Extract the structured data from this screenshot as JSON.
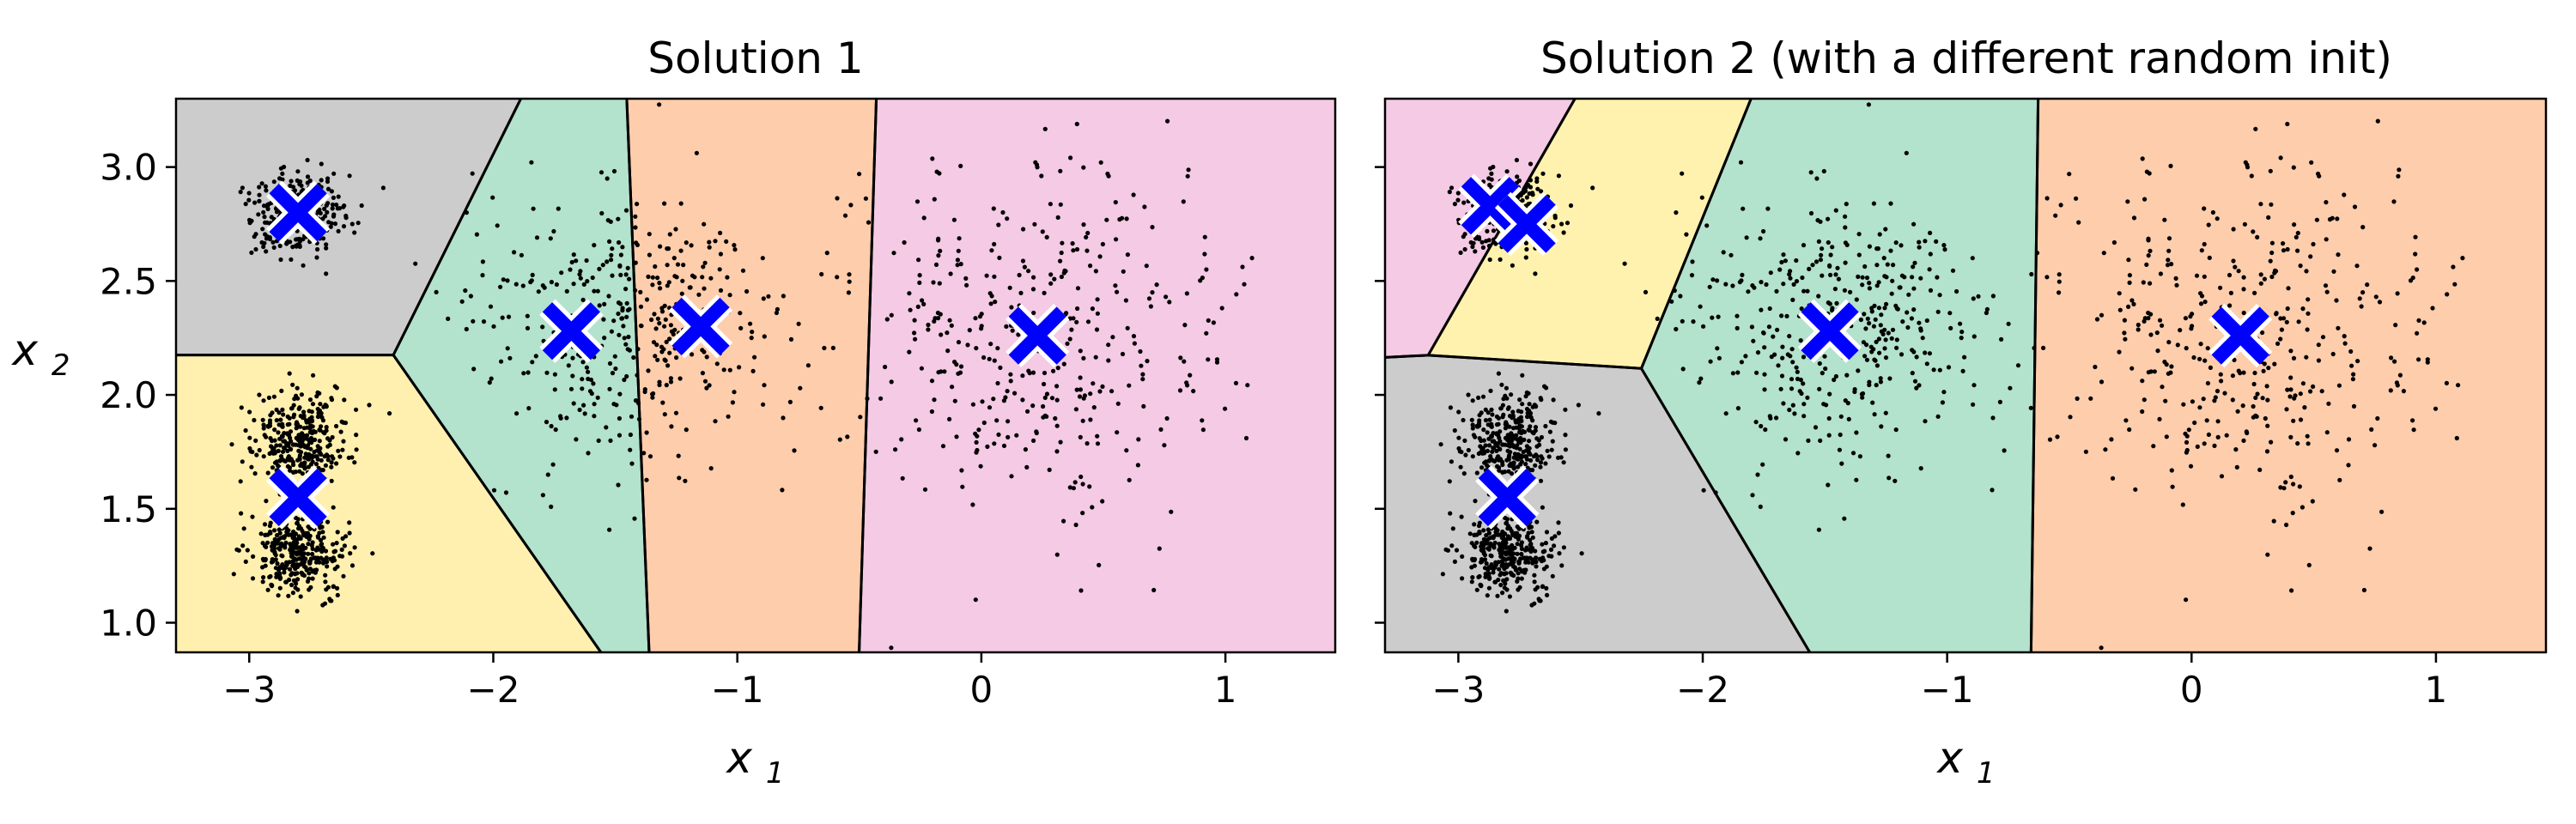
{
  "chart_data": [
    {
      "type": "scatter",
      "title": "Solution 1",
      "xlabel": "x1",
      "ylabel": "x2",
      "xlim": [
        -3.3,
        1.45
      ],
      "ylim": [
        0.87,
        3.3
      ],
      "xticks": [
        -3,
        -2,
        -1,
        0,
        1
      ],
      "xtick_labels": [
        "−3",
        "−2",
        "−1",
        "0",
        "1"
      ],
      "yticks": [
        1.0,
        1.5,
        2.0,
        2.5,
        3.0
      ],
      "ytick_labels": [
        "1.0",
        "1.5",
        "2.0",
        "2.5",
        "3.0"
      ],
      "show_ytick_labels": true,
      "centroids": [
        [
          -2.8,
          2.8
        ],
        [
          -2.8,
          1.55
        ],
        [
          -1.68,
          2.28
        ],
        [
          -1.15,
          2.3
        ],
        [
          0.23,
          2.26
        ]
      ],
      "region_colors": [
        "#cccccc",
        "#fff0b0",
        "#b3e2cd",
        "#fdcdac",
        "#f4cae4"
      ],
      "point_color": "#000000",
      "centroid_color": "#0000ff"
    },
    {
      "type": "scatter",
      "title": "Solution 2 (with a different random init)",
      "xlabel": "x1",
      "ylabel": "",
      "xlim": [
        -3.3,
        1.45
      ],
      "ylim": [
        0.87,
        3.3
      ],
      "xticks": [
        -3,
        -2,
        -1,
        0,
        1
      ],
      "xtick_labels": [
        "−3",
        "−2",
        "−1",
        "0",
        "1"
      ],
      "yticks": [
        1.0,
        1.5,
        2.0,
        2.5,
        3.0
      ],
      "ytick_labels": [
        "",
        "",
        "",
        "",
        ""
      ],
      "show_ytick_labels": false,
      "centroids": [
        [
          -2.87,
          2.83
        ],
        [
          -2.72,
          2.75
        ],
        [
          -2.8,
          1.55
        ],
        [
          -1.48,
          2.28
        ],
        [
          0.2,
          2.26
        ]
      ],
      "region_colors": [
        "#f4cae4",
        "#fff2ae",
        "#cccccc",
        "#b3e2cd",
        "#fdcdac"
      ],
      "point_color": "#000000",
      "centroid_color": "#0000ff"
    }
  ],
  "blobs": [
    {
      "center": [
        -2.8,
        2.8
      ],
      "std": 0.1,
      "count": 280
    },
    {
      "center": [
        -2.8,
        1.3
      ],
      "std": 0.1,
      "count": 330
    },
    {
      "center": [
        -2.8,
        1.8
      ],
      "std": 0.1,
      "count": 330
    },
    {
      "center": [
        -1.45,
        2.3
      ],
      "std": 0.3,
      "count": 400
    },
    {
      "center": [
        0.2,
        2.25
      ],
      "std": 0.4,
      "count": 400
    }
  ]
}
